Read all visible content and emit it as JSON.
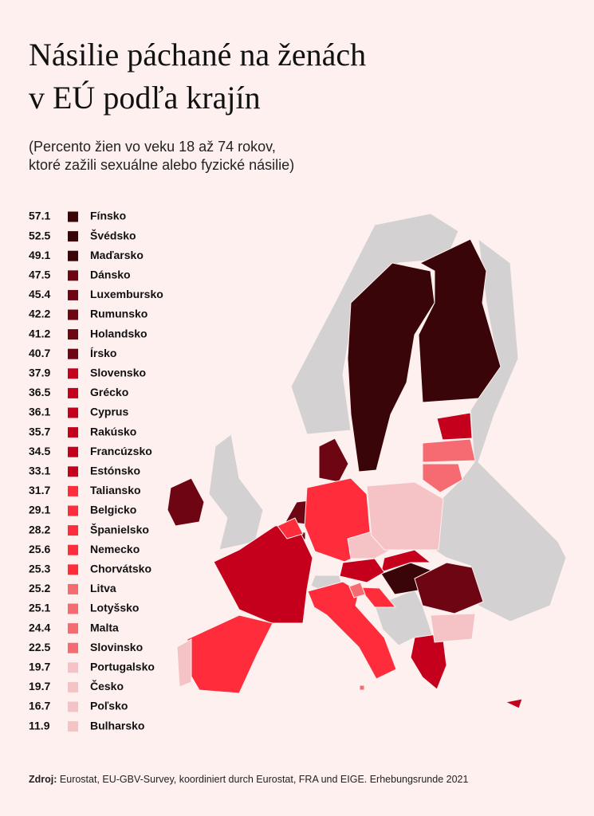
{
  "header": {
    "title_lines": [
      "Násilie páchané na ženách",
      "v EÚ podľa krajín"
    ],
    "subtitle_lines": [
      "(Percento žien vo veku 18 až 74 rokov,",
      "ktoré zažili sexuálne alebo fyzické násilie)"
    ]
  },
  "legend": {
    "items": [
      {
        "value": 57.1,
        "name": "Fínsko",
        "color": "#3a0508"
      },
      {
        "value": 52.5,
        "name": "Švédsko",
        "color": "#3a0508"
      },
      {
        "value": 49.1,
        "name": "Maďarsko",
        "color": "#3a0508"
      },
      {
        "value": 47.5,
        "name": "Dánsko",
        "color": "#6e0512"
      },
      {
        "value": 45.4,
        "name": "Luxembursko",
        "color": "#6e0512"
      },
      {
        "value": 42.2,
        "name": "Rumunsko",
        "color": "#6e0512"
      },
      {
        "value": 41.2,
        "name": "Holandsko",
        "color": "#6e0512"
      },
      {
        "value": 40.7,
        "name": "Írsko",
        "color": "#6e0512"
      },
      {
        "value": 37.9,
        "name": "Slovensko",
        "color": "#c4001c"
      },
      {
        "value": 36.5,
        "name": "Grécko",
        "color": "#c4001c"
      },
      {
        "value": 36.1,
        "name": "Cyprus",
        "color": "#c4001c"
      },
      {
        "value": 35.7,
        "name": "Rakúsko",
        "color": "#c4001c"
      },
      {
        "value": 34.5,
        "name": "Francúzsko",
        "color": "#c4001c"
      },
      {
        "value": 33.1,
        "name": "Estónsko",
        "color": "#c4001c"
      },
      {
        "value": 31.7,
        "name": "Taliansko",
        "color": "#ff2d3c"
      },
      {
        "value": 29.1,
        "name": "Belgicko",
        "color": "#ff2d3c"
      },
      {
        "value": 28.2,
        "name": "Španielsko",
        "color": "#ff2d3c"
      },
      {
        "value": 25.6,
        "name": "Nemecko",
        "color": "#ff2d3c"
      },
      {
        "value": 25.3,
        "name": "Chorvátsko",
        "color": "#ff2d3c"
      },
      {
        "value": 25.2,
        "name": "Litva",
        "color": "#f66a72"
      },
      {
        "value": 25.1,
        "name": "Lotyšsko",
        "color": "#f66a72"
      },
      {
        "value": 24.4,
        "name": "Malta",
        "color": "#f66a72"
      },
      {
        "value": 22.5,
        "name": "Slovinsko",
        "color": "#f66a72"
      },
      {
        "value": 19.7,
        "name": "Portugalsko",
        "color": "#f5c2c5"
      },
      {
        "value": 19.7,
        "name": "Česko",
        "color": "#f5c2c5"
      },
      {
        "value": 16.7,
        "name": "Poľsko",
        "color": "#f5c2c5"
      },
      {
        "value": 11.9,
        "name": "Bulharsko",
        "color": "#f5c2c5"
      }
    ]
  },
  "footer": {
    "source_label": "Zdroj:",
    "source_text": "Eurostat, EU-GBV-Survey, koordiniert durch Eurostat, FRA und EIGE. Erhebungsrunde 2021"
  }
}
